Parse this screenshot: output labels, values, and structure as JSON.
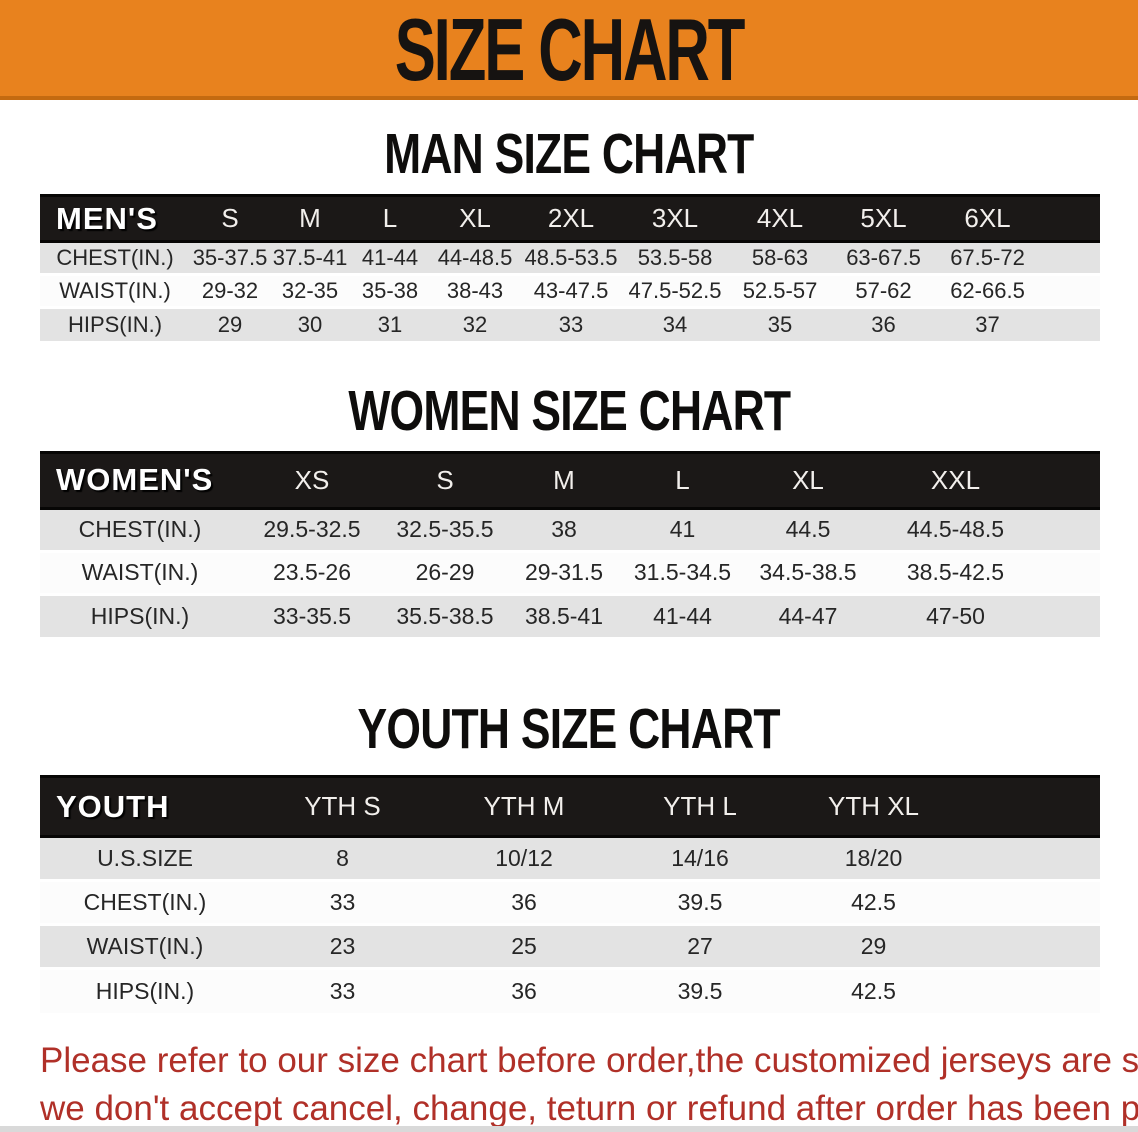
{
  "banner": {
    "title": "SIZE CHART"
  },
  "colors": {
    "banner_orange": "#e8821e",
    "banner_border": "#c46a10",
    "header_black": "#1b1817",
    "row_gray": "#e3e3e3",
    "row_white": "#fcfcfc",
    "note_red": "#b03028"
  },
  "men": {
    "heading": "MAN SIZE CHART",
    "table": {
      "header": [
        "MEN'S",
        "S",
        "M",
        "L",
        "XL",
        "2XL",
        "3XL",
        "4XL",
        "5XL",
        "6XL"
      ],
      "rows": [
        {
          "label": "CHEST(IN.)",
          "values": [
            "35-37.5",
            "37.5-41",
            "41-44",
            "44-48.5",
            "48.5-53.5",
            "53.5-58",
            "58-63",
            "63-67.5",
            "67.5-72"
          ]
        },
        {
          "label": "WAIST(IN.)",
          "values": [
            "29-32",
            "32-35",
            "35-38",
            "38-43",
            "43-47.5",
            "47.5-52.5",
            "52.5-57",
            "57-62",
            "62-66.5"
          ]
        },
        {
          "label": "HIPS(IN.)",
          "values": [
            "29",
            "30",
            "31",
            "32",
            "33",
            "34",
            "35",
            "36",
            "37"
          ]
        }
      ]
    }
  },
  "women": {
    "heading": "WOMEN SIZE CHART",
    "table": {
      "header": [
        "WOMEN'S",
        "XS",
        "S",
        "M",
        "L",
        "XL",
        "XXL"
      ],
      "rows": [
        {
          "label": "CHEST(IN.)",
          "values": [
            "29.5-32.5",
            "32.5-35.5",
            "38",
            "41",
            "44.5",
            "44.5-48.5"
          ]
        },
        {
          "label": "WAIST(IN.)",
          "values": [
            "23.5-26",
            "26-29",
            "29-31.5",
            "31.5-34.5",
            "34.5-38.5",
            "38.5-42.5"
          ]
        },
        {
          "label": "HIPS(IN.)",
          "values": [
            "33-35.5",
            "35.5-38.5",
            "38.5-41",
            "41-44",
            "44-47",
            "47-50"
          ]
        }
      ]
    }
  },
  "youth": {
    "heading": "YOUTH SIZE CHART",
    "table": {
      "header": [
        "YOUTH",
        "YTH S",
        "YTH M",
        "YTH L",
        "YTH XL"
      ],
      "rows": [
        {
          "label": "U.S.SIZE",
          "values": [
            "8",
            "10/12",
            "14/16",
            "18/20"
          ]
        },
        {
          "label": "CHEST(IN.)",
          "values": [
            "33",
            "36",
            "39.5",
            "42.5"
          ]
        },
        {
          "label": "WAIST(IN.)",
          "values": [
            "23",
            "25",
            "27",
            "29"
          ]
        },
        {
          "label": "HIPS(IN.)",
          "values": [
            "33",
            "36",
            "39.5",
            "42.5"
          ]
        }
      ]
    }
  },
  "note": {
    "line1": "Please refer to our size chart before order,the customized jerseys are special products,",
    "line2": "we don't accept cancel, change, teturn or refund after order has been placed!"
  }
}
